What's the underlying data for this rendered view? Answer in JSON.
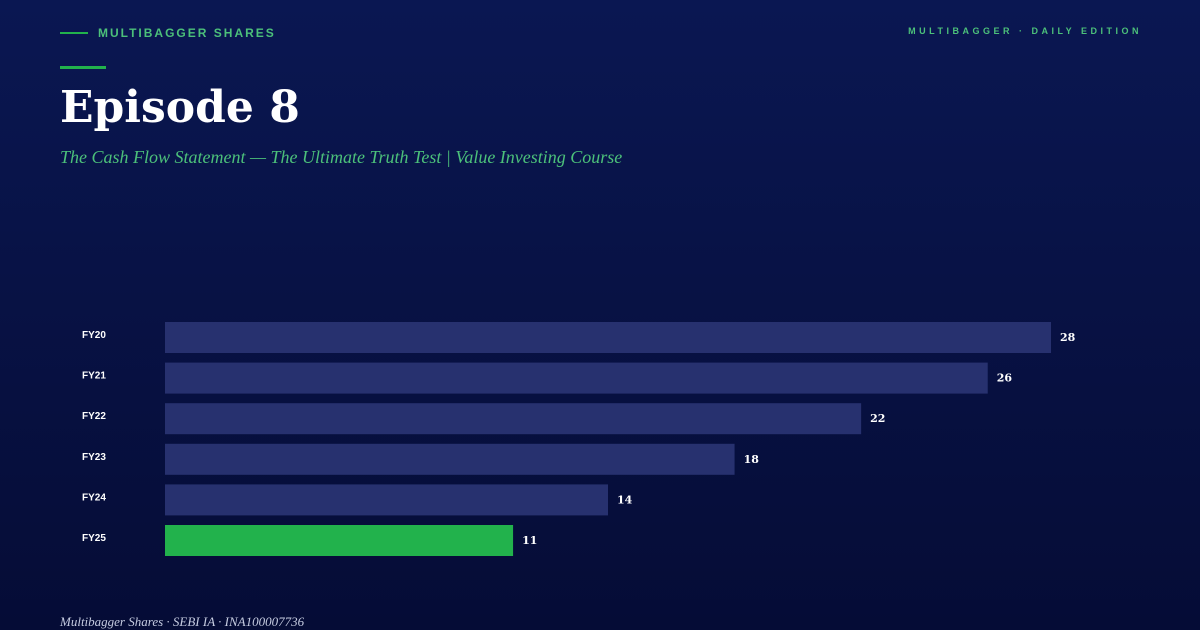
{
  "header": {
    "brand": "MULTIBAGGER SHARES",
    "edition": "MULTIBAGGER · DAILY EDITION",
    "title": "Episode 8",
    "subtitle": "The Cash Flow Statement — The Ultimate Truth Test | Value Investing Course"
  },
  "footer": {
    "text": "Multibagger Shares · SEBI IA · INA100007736"
  },
  "colors": {
    "background": "#081245",
    "accent": "#22b24c",
    "bar": "#27316f",
    "highlight_bar": "#22b24c"
  },
  "chart_data": {
    "type": "bar",
    "orientation": "horizontal",
    "categories": [
      "FY20",
      "FY21",
      "FY22",
      "FY23",
      "FY24",
      "FY25"
    ],
    "values": [
      28,
      26,
      22,
      18,
      14,
      11
    ],
    "highlight_category": "FY25",
    "xlim": [
      0,
      28
    ],
    "grid": false,
    "legend": "none"
  }
}
